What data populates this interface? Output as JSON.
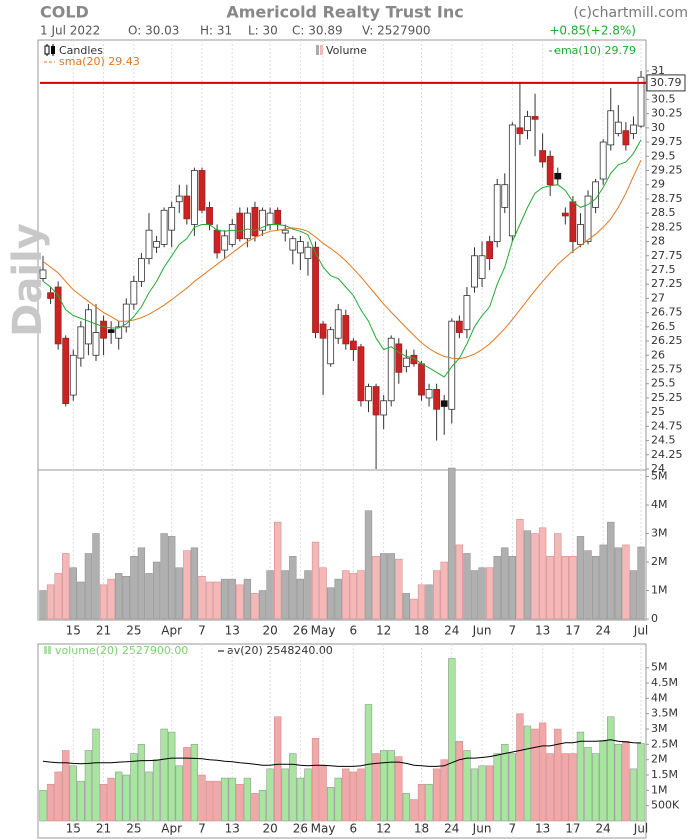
{
  "header": {
    "symbol": "COLD",
    "company": "Americold Realty Trust Inc",
    "credit": "(c)chartmill.com",
    "date": "1 Jul 2022",
    "open": "O: 30.03",
    "high": "H: 31",
    "low": "L: 30",
    "close": "C: 30.89",
    "volume": "V: 2527900",
    "change": "+0.85(+2.8%)",
    "period": "Daily"
  },
  "chart_data": [
    {
      "type": "candlestick",
      "name": "Candles",
      "up_color": "#ffffff",
      "down_color": "#cc2222",
      "hold_color": "#111111",
      "open": [
        27.35,
        27.1,
        27.2,
        26.3,
        25.3,
        25.95,
        26.2,
        26.0,
        26.6,
        26.45,
        26.3,
        26.5,
        26.9,
        27.3,
        27.7,
        27.9,
        27.95,
        28.2,
        28.7,
        28.8,
        28.3,
        29.25,
        28.6,
        28.2,
        27.85,
        27.95,
        28.5,
        28.05,
        28.6,
        28.2,
        28.3,
        28.55,
        28.15,
        27.85,
        27.8,
        27.7,
        27.9,
        26.55,
        25.85,
        26.3,
        26.7,
        26.25,
        26.15,
        25.2,
        25.45,
        24.95,
        25.2,
        26.2,
        25.8,
        26.0,
        25.85,
        25.25,
        25.4,
        25.2,
        25.05,
        26.6,
        26.45,
        27.2,
        27.35,
        28.0,
        28.0,
        28.6,
        28.1,
        30.0,
        29.95,
        30.2,
        29.6,
        29.5,
        29.2,
        28.5,
        28.7,
        27.95,
        28.0,
        28.6,
        29.1,
        29.7,
        29.9,
        29.95,
        29.9,
        30.03
      ],
      "high": [
        27.75,
        27.2,
        27.3,
        26.35,
        26.1,
        26.6,
        26.9,
        26.9,
        26.7,
        26.6,
        26.6,
        27.0,
        27.4,
        27.8,
        28.5,
        28.1,
        28.6,
        28.7,
        29.0,
        29.0,
        29.3,
        29.3,
        28.7,
        28.3,
        28.2,
        28.4,
        28.6,
        28.6,
        28.7,
        28.6,
        28.6,
        28.6,
        28.3,
        28.1,
        28.1,
        28.0,
        28.0,
        26.6,
        26.5,
        26.9,
        26.8,
        26.3,
        26.2,
        25.5,
        25.5,
        25.3,
        26.35,
        26.3,
        26.1,
        26.1,
        25.9,
        25.5,
        25.5,
        25.3,
        26.65,
        26.7,
        27.2,
        27.9,
        28.0,
        28.1,
        29.1,
        29.2,
        30.1,
        30.8,
        30.3,
        30.6,
        29.9,
        29.6,
        29.3,
        28.6,
        28.8,
        28.5,
        28.9,
        29.1,
        29.8,
        30.7,
        30.4,
        30.1,
        30.2,
        31
      ],
      "low": [
        27.3,
        26.9,
        26.1,
        25.1,
        25.2,
        25.8,
        26.0,
        25.9,
        26.0,
        26.2,
        26.1,
        26.4,
        26.8,
        27.2,
        27.6,
        27.8,
        27.9,
        27.9,
        28.5,
        28.3,
        28.1,
        28.5,
        28.2,
        27.7,
        27.7,
        27.9,
        28.0,
        27.9,
        28.0,
        28.1,
        28.2,
        28.2,
        28.0,
        27.6,
        27.5,
        27.4,
        26.3,
        25.3,
        25.8,
        26.2,
        26.1,
        25.9,
        25.1,
        25.0,
        24.0,
        24.7,
        25.1,
        25.5,
        25.7,
        25.8,
        25.2,
        25.1,
        24.5,
        24.6,
        24.8,
        26.3,
        26.3,
        27.1,
        27.2,
        27.5,
        27.9,
        28.5,
        28.0,
        29.7,
        29.8,
        29.5,
        29.3,
        28.8,
        29.0,
        28.3,
        27.8,
        27.9,
        27.95,
        28.5,
        29.0,
        29.6,
        29.85,
        29.6,
        29.8,
        30
      ],
      "close": [
        27.5,
        27.0,
        26.2,
        25.15,
        26.0,
        26.5,
        26.8,
        26.4,
        26.3,
        26.4,
        26.5,
        26.9,
        27.3,
        27.7,
        28.2,
        28.0,
        28.55,
        28.6,
        28.8,
        28.4,
        29.25,
        28.55,
        28.3,
        27.8,
        28.1,
        28.3,
        28.05,
        28.5,
        28.1,
        28.55,
        28.5,
        28.3,
        28.2,
        28.05,
        28.0,
        27.9,
        26.4,
        26.3,
        26.45,
        26.8,
        26.2,
        26.1,
        25.2,
        25.45,
        24.95,
        25.2,
        26.3,
        25.7,
        25.95,
        25.85,
        25.3,
        25.4,
        25.05,
        25.1,
        26.6,
        26.4,
        27.05,
        27.75,
        27.75,
        27.7,
        29.0,
        29.0,
        30.05,
        29.9,
        30.2,
        30.15,
        29.4,
        29.0,
        29.1,
        28.45,
        28.0,
        28.3,
        28.8,
        29.05,
        29.75,
        30.3,
        30.1,
        29.7,
        30.05,
        30.89
      ],
      "ema": {
        "name": "ema(10) 29.79",
        "color": "#22aa33",
        "values": [
          27.3,
          27.2,
          27.05,
          26.8,
          26.7,
          26.65,
          26.6,
          26.55,
          26.5,
          26.48,
          26.48,
          26.55,
          26.68,
          26.85,
          27.1,
          27.3,
          27.55,
          27.75,
          27.95,
          28.05,
          28.25,
          28.3,
          28.3,
          28.2,
          28.18,
          28.2,
          28.18,
          28.22,
          28.2,
          28.25,
          28.3,
          28.3,
          28.28,
          28.22,
          28.18,
          28.12,
          27.8,
          27.55,
          27.4,
          27.35,
          27.2,
          27.05,
          26.8,
          26.6,
          26.3,
          26.1,
          26.15,
          26.05,
          25.98,
          25.95,
          25.85,
          25.78,
          25.7,
          25.62,
          25.8,
          25.95,
          26.2,
          26.5,
          26.7,
          26.85,
          27.25,
          27.55,
          28.0,
          28.3,
          28.6,
          28.85,
          28.95,
          28.98,
          29.0,
          28.9,
          28.7,
          28.6,
          28.65,
          28.75,
          28.95,
          29.2,
          29.35,
          29.4,
          29.55,
          29.79
        ]
      },
      "sma": {
        "name": "sma(20) 29.43",
        "color": "#e07820",
        "values": [
          27.65,
          27.55,
          27.45,
          27.3,
          27.15,
          27.05,
          26.95,
          26.85,
          26.75,
          26.68,
          26.6,
          26.6,
          26.62,
          26.66,
          26.72,
          26.8,
          26.88,
          26.98,
          27.08,
          27.18,
          27.3,
          27.4,
          27.5,
          27.6,
          27.7,
          27.8,
          27.9,
          28.0,
          28.07,
          28.13,
          28.18,
          28.2,
          28.22,
          28.24,
          28.22,
          28.18,
          28.08,
          27.97,
          27.88,
          27.78,
          27.66,
          27.52,
          27.38,
          27.22,
          27.06,
          26.9,
          26.76,
          26.62,
          26.48,
          26.35,
          26.22,
          26.12,
          26.04,
          25.98,
          25.95,
          25.94,
          25.97,
          26.02,
          26.1,
          26.2,
          26.33,
          26.47,
          26.63,
          26.8,
          26.97,
          27.14,
          27.3,
          27.45,
          27.6,
          27.72,
          27.83,
          27.93,
          28.03,
          28.13,
          28.25,
          28.4,
          28.6,
          28.85,
          29.15,
          29.43
        ]
      },
      "hline": {
        "value": 30.79,
        "label": "30.79",
        "color": "#cc0000"
      },
      "ylim": [
        24,
        31.2
      ],
      "yticks": [
        24,
        24.25,
        24.5,
        24.75,
        25,
        25.25,
        25.5,
        25.75,
        26,
        26.25,
        26.5,
        26.75,
        27,
        27.25,
        27.5,
        27.75,
        28,
        28.25,
        28.5,
        28.75,
        29,
        29.25,
        29.5,
        29.75,
        30,
        30.25,
        30.5,
        30.75,
        31
      ]
    },
    {
      "type": "bar",
      "name": "Volume",
      "up_color": "#b0b0b0",
      "down_color": "#f4b8b8",
      "grid": true,
      "categories": [
        null,
        null,
        null,
        null,
        "15",
        null,
        null,
        null,
        "21",
        null,
        null,
        null,
        "25",
        null,
        null,
        null,
        null,
        "Apr",
        null,
        null,
        null,
        "7",
        null,
        null,
        null,
        "13",
        null,
        null,
        null,
        null,
        "20",
        null,
        null,
        null,
        "26",
        null,
        null,
        "May",
        null,
        null,
        null,
        "6",
        null,
        null,
        null,
        "12",
        null,
        null,
        null,
        null,
        "18",
        null,
        null,
        null,
        "24",
        null,
        null,
        null,
        "Jun",
        null,
        null,
        null,
        "7",
        null,
        null,
        null,
        "13",
        null,
        null,
        null,
        "17",
        null,
        null,
        null,
        "24",
        null,
        null,
        null,
        null,
        "Jul"
      ],
      "values": [
        1000000,
        1200000,
        1600000,
        2300000,
        1800000,
        1300000,
        2300000,
        3000000,
        1200000,
        1400000,
        1600000,
        1500000,
        2200000,
        2500000,
        1600000,
        2000000,
        3000000,
        2900000,
        1800000,
        2400000,
        2500000,
        1500000,
        1300000,
        1300000,
        1400000,
        1400000,
        1200000,
        1400000,
        900000,
        1000000,
        1700000,
        3400000,
        1700000,
        2200000,
        1400000,
        1700000,
        2700000,
        1800000,
        1100000,
        1400000,
        1700000,
        1600000,
        1700000,
        3800000,
        2200000,
        2300000,
        2300000,
        2100000,
        900000,
        700000,
        1200000,
        1200000,
        1700000,
        2000000,
        5300000,
        2600000,
        2300000,
        1700000,
        1800000,
        1800000,
        2200000,
        2500000,
        2200000,
        3500000,
        3100000,
        3000000,
        3200000,
        2200000,
        3000000,
        2200000,
        2200000,
        2900000,
        2400000,
        2200000,
        2600000,
        3400000,
        2500000,
        2600000,
        1700000,
        2527900
      ],
      "ylim": [
        0,
        5300000
      ],
      "yticks": [
        0,
        {
          "value": 1000000,
          "label": "1M"
        },
        {
          "value": 2000000,
          "label": "2M"
        },
        {
          "value": 3000000,
          "label": "3M"
        },
        {
          "value": 4000000,
          "label": "4M"
        },
        {
          "value": 5000000,
          "label": "5M"
        }
      ]
    },
    {
      "type": "bar",
      "name": "volume(20) 2527900.00",
      "up_color": "#a8e6a0",
      "down_color": "#f0a8a8",
      "categories": [
        null,
        null,
        null,
        null,
        "15",
        null,
        null,
        null,
        "21",
        null,
        null,
        null,
        "25",
        null,
        null,
        null,
        null,
        "Apr",
        null,
        null,
        null,
        "7",
        null,
        null,
        null,
        "13",
        null,
        null,
        null,
        null,
        "20",
        null,
        null,
        null,
        "26",
        null,
        null,
        "May",
        null,
        null,
        null,
        "6",
        null,
        null,
        null,
        "12",
        null,
        null,
        null,
        null,
        "18",
        null,
        null,
        null,
        "24",
        null,
        null,
        null,
        "Jun",
        null,
        null,
        null,
        "7",
        null,
        null,
        null,
        "13",
        null,
        null,
        null,
        "17",
        null,
        null,
        null,
        "24",
        null,
        null,
        null,
        null,
        "Jul"
      ],
      "values": [
        1000000,
        1200000,
        1600000,
        2300000,
        1800000,
        1300000,
        2300000,
        3000000,
        1200000,
        1400000,
        1600000,
        1500000,
        2200000,
        2500000,
        1600000,
        2000000,
        3000000,
        2900000,
        1800000,
        2400000,
        2500000,
        1500000,
        1300000,
        1300000,
        1400000,
        1400000,
        1200000,
        1400000,
        900000,
        1000000,
        1700000,
        3400000,
        1700000,
        2200000,
        1400000,
        1700000,
        2700000,
        1800000,
        1100000,
        1400000,
        1700000,
        1600000,
        1700000,
        3800000,
        2200000,
        2300000,
        2300000,
        2100000,
        900000,
        700000,
        1200000,
        1200000,
        1700000,
        2000000,
        5300000,
        2600000,
        2300000,
        1700000,
        1800000,
        1800000,
        2200000,
        2500000,
        2200000,
        3500000,
        3100000,
        3000000,
        3200000,
        2200000,
        3000000,
        2200000,
        2200000,
        2900000,
        2400000,
        2200000,
        2600000,
        3400000,
        2500000,
        2600000,
        1700000,
        2527900
      ],
      "average": {
        "name": "av(20) 2548240.00",
        "color": "#000000",
        "values": [
          1950000,
          1920000,
          1900000,
          1900000,
          1880000,
          1870000,
          1880000,
          1900000,
          1900000,
          1900000,
          1920000,
          1930000,
          1950000,
          1970000,
          1970000,
          1980000,
          2020000,
          2050000,
          2050000,
          2050000,
          2040000,
          2030000,
          2000000,
          1980000,
          1950000,
          1930000,
          1900000,
          1880000,
          1850000,
          1820000,
          1820000,
          1850000,
          1850000,
          1850000,
          1820000,
          1800000,
          1820000,
          1820000,
          1800000,
          1780000,
          1780000,
          1780000,
          1800000,
          1850000,
          1880000,
          1900000,
          1920000,
          1920000,
          1880000,
          1820000,
          1800000,
          1780000,
          1780000,
          1800000,
          1900000,
          2000000,
          2050000,
          2050000,
          2070000,
          2100000,
          2150000,
          2200000,
          2250000,
          2300000,
          2350000,
          2400000,
          2450000,
          2450000,
          2500000,
          2550000,
          2550000,
          2600000,
          2600000,
          2600000,
          2620000,
          2650000,
          2600000,
          2580000,
          2550000,
          2548240
        ]
      },
      "ylim": [
        0,
        5740000
      ],
      "yticks": [
        {
          "value": 500000,
          "label": "500K"
        },
        {
          "value": 1000000,
          "label": "1M"
        },
        {
          "value": 1500000,
          "label": "1.5M"
        },
        {
          "value": 2000000,
          "label": "2M"
        },
        {
          "value": 2500000,
          "label": "2.5M"
        },
        {
          "value": 3000000,
          "label": "3M"
        },
        {
          "value": 3500000,
          "label": "3.5M"
        },
        {
          "value": 4000000,
          "label": "4M"
        },
        {
          "value": 4500000,
          "label": "4.5M"
        },
        {
          "value": 5000000,
          "label": "5M"
        }
      ]
    }
  ]
}
